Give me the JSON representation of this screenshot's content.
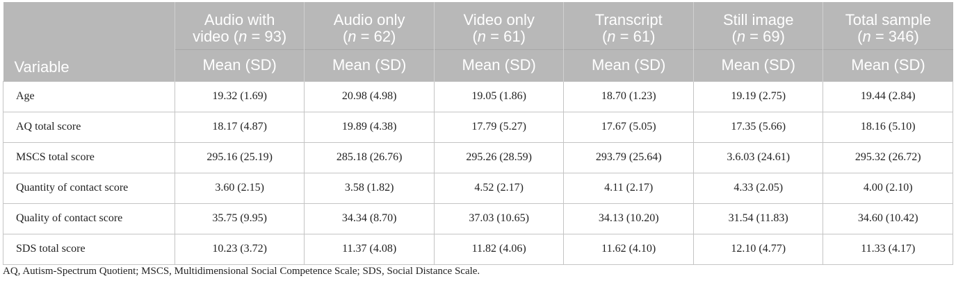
{
  "table": {
    "header": {
      "variable": "Variable",
      "stat": "Mean (SD)",
      "groups": [
        {
          "l1": "Audio with",
          "l2pre": "video (",
          "n": "n",
          "l2post": " = 93)"
        },
        {
          "l1": "Audio only",
          "l2pre": "(",
          "n": "n",
          "l2post": " = 62)"
        },
        {
          "l1": "Video only",
          "l2pre": "(",
          "n": "n",
          "l2post": " = 61)"
        },
        {
          "l1": "Transcript",
          "l2pre": "(",
          "n": "n",
          "l2post": " = 61)"
        },
        {
          "l1": "Still image",
          "l2pre": "(",
          "n": "n",
          "l2post": " = 69)"
        },
        {
          "l1": "Total sample",
          "l2pre": "(",
          "n": "n",
          "l2post": " = 346)"
        }
      ]
    },
    "rows": [
      {
        "label": "Age",
        "cells": [
          "19.32 (1.69)",
          "20.98 (4.98)",
          "19.05 (1.86)",
          "18.70 (1.23)",
          "19.19 (2.75)",
          "19.44 (2.84)"
        ]
      },
      {
        "label": "AQ total score",
        "cells": [
          "18.17 (4.87)",
          "19.89 (4.38)",
          "17.79 (5.27)",
          "17.67 (5.05)",
          "17.35 (5.66)",
          "18.16 (5.10)"
        ]
      },
      {
        "label": "MSCS total score",
        "cells": [
          "295.16 (25.19)",
          "285.18 (26.76)",
          "295.26 (28.59)",
          "293.79 (25.64)",
          "3.6.03 (24.61)",
          "295.32 (26.72)"
        ]
      },
      {
        "label": "Quantity of contact score",
        "cells": [
          "3.60 (2.15)",
          "3.58 (1.82)",
          "4.52 (2.17)",
          "4.11 (2.17)",
          "4.33 (2.05)",
          "4.00 (2.10)"
        ]
      },
      {
        "label": "Quality of contact score",
        "cells": [
          "35.75 (9.95)",
          "34.34 (8.70)",
          "37.03 (10.65)",
          "34.13 (10.20)",
          "31.54 (11.83)",
          "34.60 (10.42)"
        ]
      },
      {
        "label": "SDS total score",
        "cells": [
          "10.23 (3.72)",
          "11.37 (4.08)",
          "11.82 (4.06)",
          "11.62 (4.10)",
          "12.10 (4.77)",
          "11.33 (4.17)"
        ]
      }
    ]
  },
  "footnote": "AQ, Autism-Spectrum Quotient; MSCS, Multidimensional Social Competence Scale; SDS, Social Distance Scale."
}
